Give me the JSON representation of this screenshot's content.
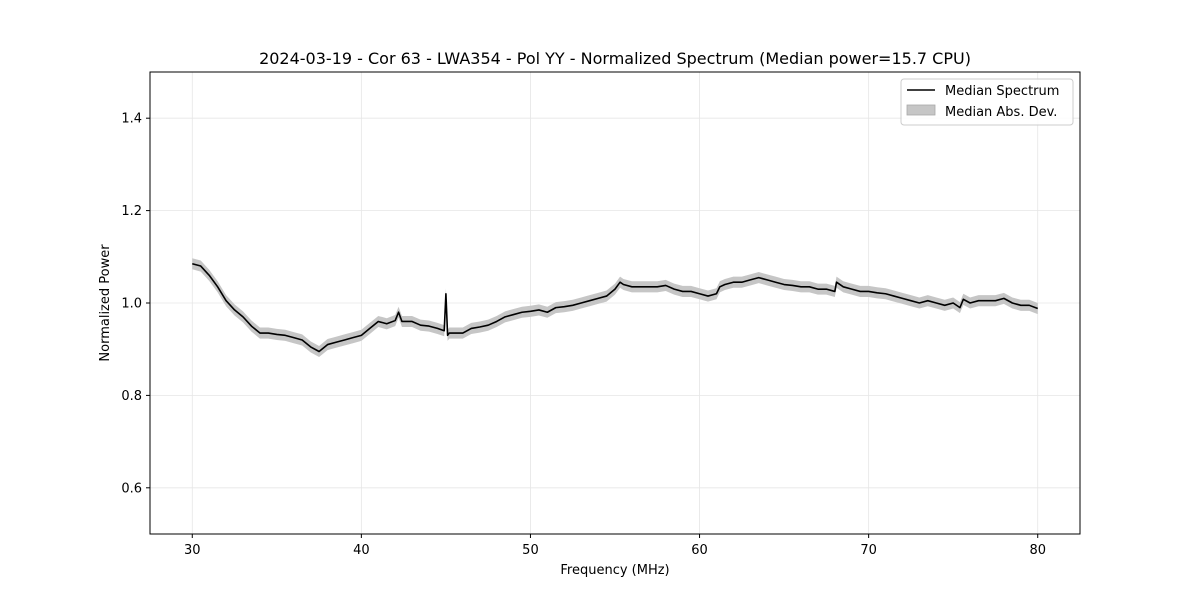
{
  "chart_data": {
    "type": "line",
    "title": "2024-03-19 - Cor 63 - LWA354 - Pol YY - Normalized Spectrum (Median power=15.7 CPU)",
    "xlabel": "Frequency (MHz)",
    "ylabel": "Normalized Power",
    "xlim": [
      27.5,
      82.5
    ],
    "ylim": [
      0.5,
      1.5
    ],
    "xticks": [
      30,
      40,
      50,
      60,
      70,
      80
    ],
    "yticks": [
      0.6,
      0.8,
      1.0,
      1.2,
      1.4
    ],
    "xtick_labels": [
      "30",
      "40",
      "50",
      "60",
      "70",
      "80"
    ],
    "ytick_labels": [
      "0.6",
      "0.8",
      "1.0",
      "1.2",
      "1.4"
    ],
    "grid": true,
    "legend_position": "top-right",
    "series": [
      {
        "name": "Median Spectrum",
        "kind": "line",
        "color": "#000000",
        "x": [
          30,
          30.5,
          31,
          31.5,
          32,
          32.5,
          33,
          33.5,
          34,
          34.5,
          35,
          35.5,
          36,
          36.5,
          37,
          37.5,
          38,
          38.5,
          39,
          39.5,
          40,
          40.5,
          41,
          41.5,
          42,
          42.2,
          42.4,
          43,
          43.5,
          44,
          44.5,
          44.9,
          45.0,
          45.1,
          45.2,
          45.5,
          46,
          46.5,
          47,
          47.5,
          48,
          48.5,
          49,
          49.5,
          50,
          50.5,
          51,
          51.5,
          52,
          52.5,
          53,
          53.5,
          54,
          54.5,
          55,
          55.3,
          55.5,
          56,
          56.5,
          57,
          57.5,
          58,
          58.5,
          59,
          59.5,
          60,
          60.5,
          61,
          61.2,
          61.5,
          62,
          62.5,
          63,
          63.5,
          64,
          64.5,
          65,
          65.5,
          66,
          66.5,
          67,
          67.5,
          68,
          68.1,
          68.5,
          69,
          69.5,
          70,
          70.5,
          71,
          71.5,
          72,
          72.5,
          73,
          73.5,
          74,
          74.5,
          75,
          75.4,
          75.6,
          76,
          76.5,
          77,
          77.5,
          78,
          78.5,
          79,
          79.5,
          80
        ],
        "y": [
          1.085,
          1.08,
          1.06,
          1.035,
          1.005,
          0.985,
          0.97,
          0.95,
          0.935,
          0.935,
          0.932,
          0.93,
          0.925,
          0.92,
          0.905,
          0.895,
          0.91,
          0.915,
          0.92,
          0.925,
          0.93,
          0.945,
          0.96,
          0.955,
          0.962,
          0.98,
          0.96,
          0.96,
          0.952,
          0.95,
          0.945,
          0.94,
          1.02,
          0.93,
          0.935,
          0.935,
          0.935,
          0.945,
          0.948,
          0.952,
          0.96,
          0.97,
          0.975,
          0.98,
          0.982,
          0.985,
          0.98,
          0.99,
          0.992,
          0.995,
          1.0,
          1.005,
          1.01,
          1.015,
          1.03,
          1.045,
          1.04,
          1.035,
          1.035,
          1.035,
          1.035,
          1.038,
          1.03,
          1.025,
          1.025,
          1.02,
          1.015,
          1.02,
          1.035,
          1.04,
          1.045,
          1.045,
          1.05,
          1.055,
          1.05,
          1.045,
          1.04,
          1.038,
          1.035,
          1.035,
          1.03,
          1.03,
          1.025,
          1.045,
          1.035,
          1.03,
          1.025,
          1.025,
          1.022,
          1.02,
          1.015,
          1.01,
          1.005,
          1.0,
          1.005,
          1.0,
          0.995,
          1.0,
          0.99,
          1.008,
          1.0,
          1.005,
          1.005,
          1.005,
          1.01,
          1.0,
          0.995,
          0.995,
          0.988
        ]
      },
      {
        "name": "Median Abs. Dev.",
        "kind": "band",
        "color": "#c6c6c6",
        "half_width": 0.012
      }
    ]
  }
}
